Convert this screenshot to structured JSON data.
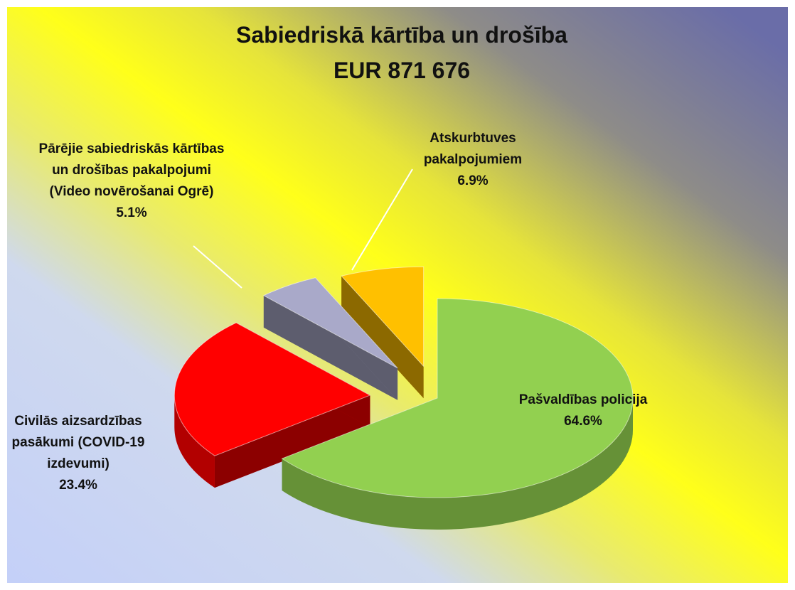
{
  "chart_data": {
    "type": "pie",
    "title": "Sabiedriskā kārtība un drošība",
    "subtitle": "EUR 871 676",
    "categories": [
      "Pašvaldības policija",
      "Civilās aizsardzības pasākumi (COVID-19 izdevumi)",
      "Pārējie sabiedriskās kārtības un drošības pakalpojumi (Video novērošanai Ogrē)",
      "Atskurbtuves pakalpojumiem"
    ],
    "values": [
      64.6,
      23.4,
      5.1,
      6.9
    ],
    "value_labels": [
      "64.6%",
      "23.4%",
      "5.1%",
      "6.9%"
    ],
    "colors": [
      "#92d050",
      "#ff0000",
      "#a9a9c9",
      "#ffc000"
    ]
  }
}
